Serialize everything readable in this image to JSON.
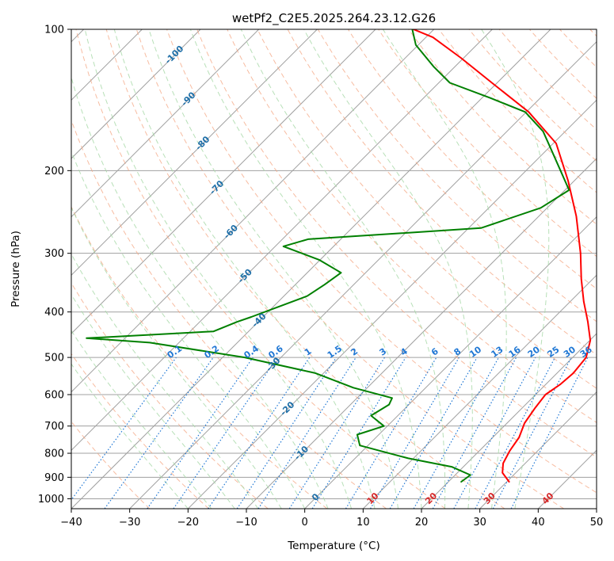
{
  "chart_data": {
    "type": "line",
    "title": "wetPf2_C2E5.2025.264.23.12.G26",
    "xlabel": "Temperature (°C)",
    "ylabel": "Pressure (hPa)",
    "xlim": [
      -40,
      50
    ],
    "ylim": [
      1050,
      100
    ],
    "y_scale": "log",
    "grid": true,
    "x_ticks": [
      -40,
      -30,
      -20,
      -10,
      0,
      10,
      20,
      30,
      40,
      50
    ],
    "y_ticks": [
      100,
      200,
      300,
      400,
      500,
      600,
      700,
      800,
      900,
      1000
    ],
    "isotherm_step_c": 10,
    "dry_adiabat_labels": [
      "-100",
      "-90",
      "-80",
      "-70",
      "-60",
      "-50",
      "-40",
      "-30",
      "-20",
      "-10",
      "0",
      "10",
      "20",
      "30",
      "40"
    ],
    "mixing_ratio_labels": [
      "0.1",
      "0.2",
      "0.4",
      "0.6",
      "1",
      "1.5",
      "2",
      "3",
      "4",
      "6",
      "8",
      "10",
      "13",
      "16",
      "20",
      "25",
      "30",
      "36"
    ],
    "colors": {
      "temperature": "#ff0000",
      "dewpoint": "#008000",
      "dry_adiabat": "#f4a582",
      "moist_adiabat": "#a6d8a6",
      "mixing_ratio": "#1f77d4",
      "isotherm": "#a0a0a0",
      "dry_adiabat_label_cold": "#1f6fa8",
      "dry_adiabat_label_warm": "#d62728"
    },
    "series": [
      {
        "name": "temperature",
        "points": [
          [
            30.4,
            920
          ],
          [
            27.7,
            880
          ],
          [
            26.2,
            840
          ],
          [
            25.2,
            790
          ],
          [
            24.5,
            740
          ],
          [
            23.0,
            690
          ],
          [
            22.2,
            640
          ],
          [
            21.7,
            600
          ],
          [
            22.5,
            570
          ],
          [
            22.8,
            540
          ],
          [
            22.3,
            500
          ],
          [
            20.1,
            460
          ],
          [
            16.5,
            420
          ],
          [
            12.3,
            380
          ],
          [
            8.0,
            340
          ],
          [
            3.5,
            300
          ],
          [
            -3.6,
            250
          ],
          [
            -11.1,
            210
          ],
          [
            -19.5,
            175
          ],
          [
            -29.6,
            150
          ],
          [
            -40.9,
            130
          ],
          [
            -50.5,
            115
          ],
          [
            -58.8,
            104
          ],
          [
            -63.5,
            100
          ]
        ]
      },
      {
        "name": "dewpoint",
        "points": [
          [
            22.2,
            920
          ],
          [
            22.6,
            890
          ],
          [
            18.0,
            855
          ],
          [
            9.1,
            820
          ],
          [
            -1.4,
            770
          ],
          [
            -3.7,
            730
          ],
          [
            -0.6,
            700
          ],
          [
            -4.6,
            665
          ],
          [
            -3.4,
            630
          ],
          [
            -4.0,
            610
          ],
          [
            -12.4,
            580
          ],
          [
            -21.4,
            540
          ],
          [
            -36.2,
            500
          ],
          [
            -55.0,
            465
          ],
          [
            -66.6,
            455
          ],
          [
            -46.0,
            440
          ],
          [
            -43.6,
            420
          ],
          [
            -42.0,
            410
          ],
          [
            -39.1,
            390
          ],
          [
            -36.0,
            370
          ],
          [
            -35.0,
            350
          ],
          [
            -34.2,
            330
          ],
          [
            -40.1,
            310
          ],
          [
            -48.6,
            290
          ],
          [
            -45.6,
            280
          ],
          [
            -17.9,
            265
          ],
          [
            -11.1,
            240
          ],
          [
            -9.3,
            220
          ],
          [
            -14.1,
            200
          ],
          [
            -19.4,
            180
          ],
          [
            -23.8,
            165
          ],
          [
            -30.2,
            150
          ],
          [
            -38.6,
            140
          ],
          [
            -48.1,
            130
          ],
          [
            -53.7,
            120
          ],
          [
            -60.4,
            108
          ],
          [
            -63.7,
            100
          ]
        ]
      }
    ]
  }
}
